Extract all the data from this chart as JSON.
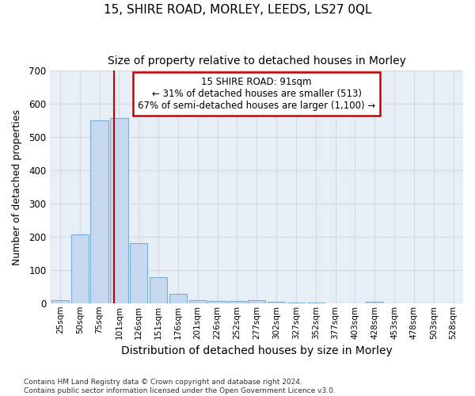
{
  "title": "15, SHIRE ROAD, MORLEY, LEEDS, LS27 0QL",
  "subtitle": "Size of property relative to detached houses in Morley",
  "xlabel": "Distribution of detached houses by size in Morley",
  "ylabel": "Number of detached properties",
  "categories": [
    "25sqm",
    "50sqm",
    "75sqm",
    "101sqm",
    "126sqm",
    "151sqm",
    "176sqm",
    "201sqm",
    "226sqm",
    "252sqm",
    "277sqm",
    "302sqm",
    "327sqm",
    "352sqm",
    "377sqm",
    "403sqm",
    "428sqm",
    "453sqm",
    "478sqm",
    "503sqm",
    "528sqm"
  ],
  "values": [
    10,
    207,
    550,
    557,
    180,
    78,
    27,
    10,
    7,
    7,
    9,
    4,
    2,
    1,
    0,
    0,
    5,
    0,
    0,
    0,
    0
  ],
  "bar_color": "#c5d8f0",
  "bar_edgecolor": "#7bafd4",
  "annotation_line0": "15 SHIRE ROAD: 91sqm",
  "annotation_line1": "← 31% of detached houses are smaller (513)",
  "annotation_line2": "67% of semi-detached houses are larger (1,100) →",
  "annotation_box_facecolor": "#ffffff",
  "annotation_box_edgecolor": "#cc0000",
  "vline_color": "#cc0000",
  "ylim": [
    0,
    700
  ],
  "yticks": [
    0,
    100,
    200,
    300,
    400,
    500,
    600,
    700
  ],
  "grid_color": "#d0dae8",
  "bg_color": "#e8eef5",
  "fig_bg_color": "#ffffff",
  "title_fontsize": 11,
  "subtitle_fontsize": 10,
  "ylabel_fontsize": 9,
  "xlabel_fontsize": 10,
  "footnote1": "Contains HM Land Registry data © Crown copyright and database right 2024.",
  "footnote2": "Contains public sector information licensed under the Open Government Licence v3.0.",
  "vline_x_index": 2.75
}
